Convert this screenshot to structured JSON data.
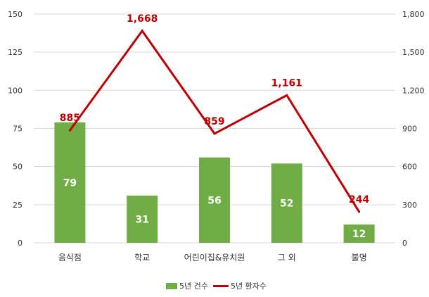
{
  "chart_data": {
    "type": "bar",
    "categories": [
      "음식점",
      "학교",
      "어린이집&유치원",
      "그 외",
      "불명"
    ],
    "series": [
      {
        "name": "5년 건수",
        "type": "bar",
        "axis": "left",
        "values": [
          79,
          31,
          56,
          52,
          12
        ],
        "labels": [
          "79",
          "31",
          "56",
          "52",
          "12"
        ]
      },
      {
        "name": "5년 환자수",
        "type": "line",
        "axis": "right",
        "values": [
          885,
          1668,
          859,
          1161,
          244
        ],
        "labels": [
          "885",
          "1,668",
          "859",
          "1,161",
          "244"
        ]
      }
    ],
    "y_left": {
      "ylim": [
        0,
        150
      ],
      "ticks": [
        0,
        25,
        50,
        75,
        100,
        125,
        150
      ],
      "tick_labels": [
        "0",
        "25",
        "50",
        "75",
        "100",
        "125",
        "150"
      ]
    },
    "y_right": {
      "ylim": [
        0,
        1800
      ],
      "ticks": [
        0,
        300,
        600,
        900,
        1200,
        1500,
        1800
      ],
      "tick_labels": [
        "0",
        "300",
        "600",
        "900",
        "1,200",
        "1,500",
        "1,800"
      ]
    },
    "grid": true,
    "legend": "bottom",
    "colors": {
      "bar": "#70ad47",
      "line": "#c00000",
      "grid": "#d9d9d9",
      "axis_text": "#333333"
    }
  }
}
